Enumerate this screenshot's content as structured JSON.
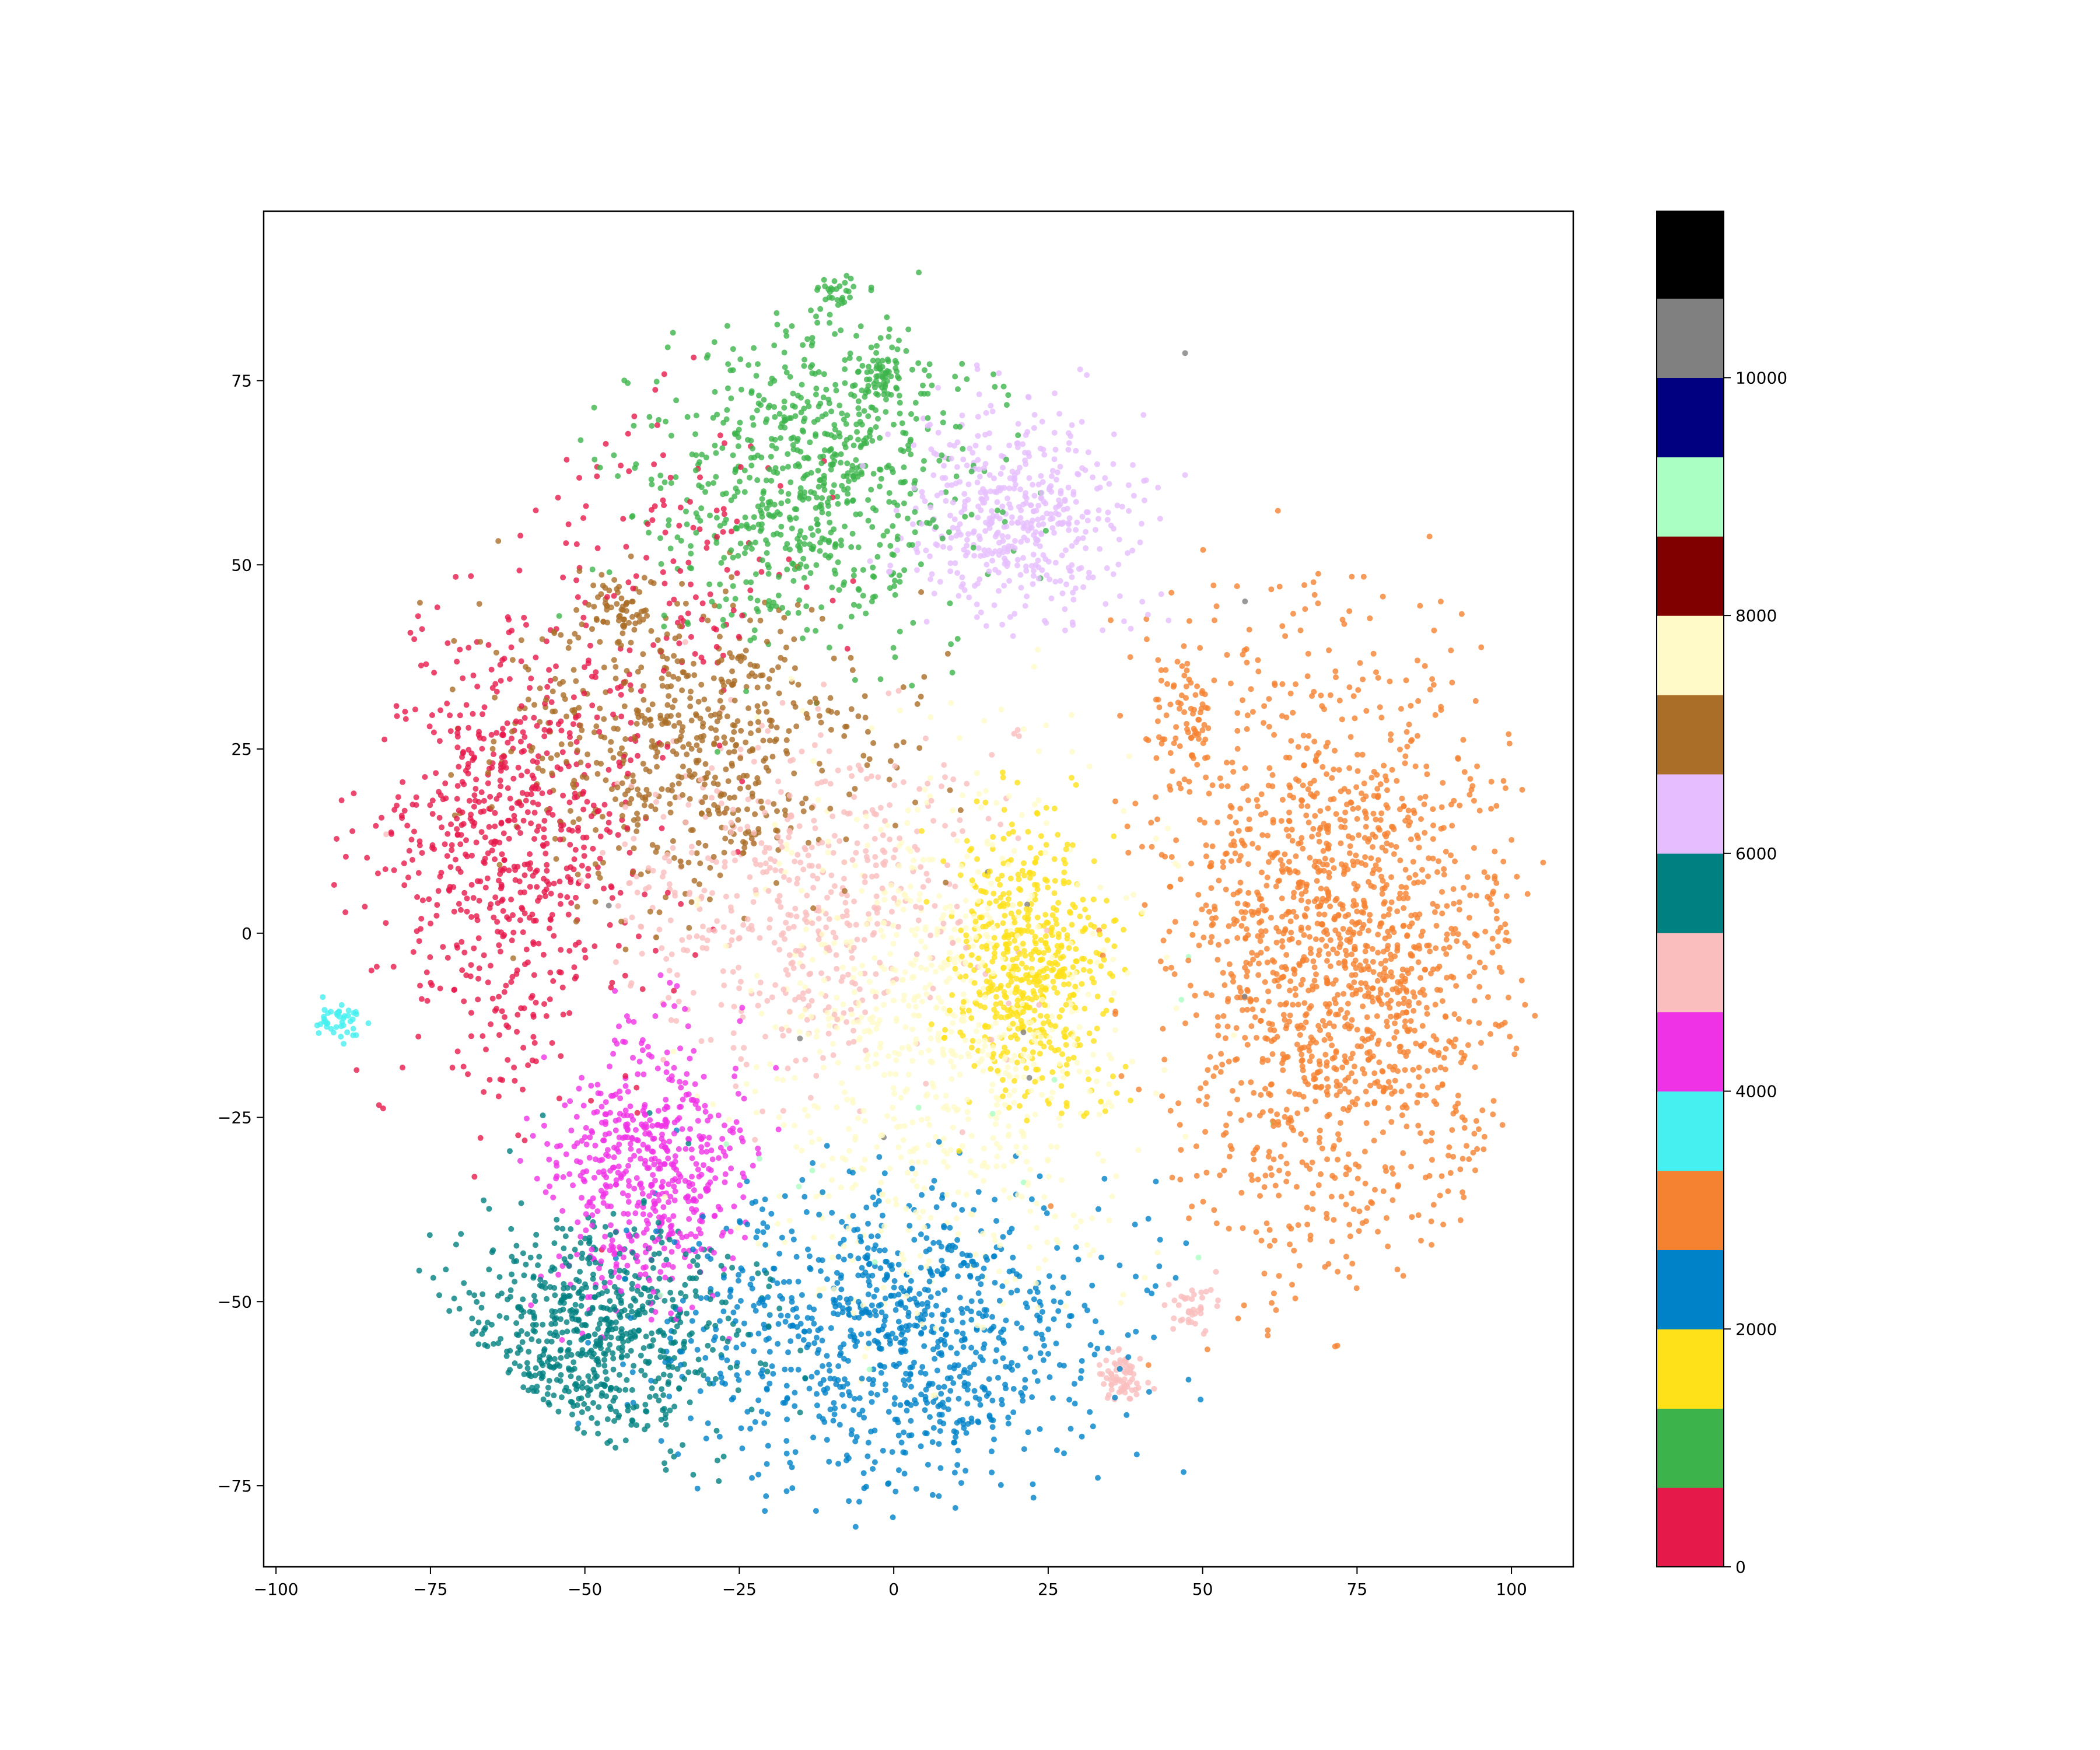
{
  "chart_data": {
    "type": "scatter",
    "title": "",
    "xlabel": "",
    "ylabel": "",
    "xlim": [
      -102,
      110
    ],
    "ylim": [
      -86,
      98
    ],
    "xticks": [
      "−100",
      "−75",
      "−50",
      "−25",
      "0",
      "25",
      "50",
      "75",
      "100"
    ],
    "xtick_values": [
      -100,
      -75,
      -50,
      -25,
      0,
      25,
      50,
      75,
      100
    ],
    "yticks": [
      "−75",
      "−50",
      "−25",
      "0",
      "25",
      "50",
      "75"
    ],
    "ytick_values": [
      -75,
      -50,
      -25,
      0,
      25,
      50,
      75
    ],
    "grid": false,
    "legend": "none",
    "colorbar": {
      "range": [
        0,
        11400
      ],
      "tick_labels": [
        "0",
        "2000",
        "4000",
        "6000",
        "8000",
        "10000"
      ],
      "tick_values": [
        0,
        2000,
        4000,
        6000,
        8000,
        10000
      ],
      "bins": [
        {
          "from": 0,
          "to": 667,
          "color": "#e6194b"
        },
        {
          "from": 667,
          "to": 1333,
          "color": "#3cb44b"
        },
        {
          "from": 1333,
          "to": 2000,
          "color": "#ffe119"
        },
        {
          "from": 2000,
          "to": 2667,
          "color": "#0082c8"
        },
        {
          "from": 2667,
          "to": 3333,
          "color": "#f58231"
        },
        {
          "from": 3333,
          "to": 4000,
          "color": "#46f0f0"
        },
        {
          "from": 4000,
          "to": 4667,
          "color": "#f032e6"
        },
        {
          "from": 4667,
          "to": 5333,
          "color": "#fabebe"
        },
        {
          "from": 5333,
          "to": 6000,
          "color": "#008080"
        },
        {
          "from": 6000,
          "to": 6667,
          "color": "#e6beff"
        },
        {
          "from": 6667,
          "to": 7333,
          "color": "#aa6e28"
        },
        {
          "from": 7333,
          "to": 8000,
          "color": "#fffac8"
        },
        {
          "from": 8000,
          "to": 8667,
          "color": "#800000"
        },
        {
          "from": 8667,
          "to": 9333,
          "color": "#aaffc3"
        },
        {
          "from": 9333,
          "to": 10000,
          "color": "#000080"
        },
        {
          "from": 10000,
          "to": 10667,
          "color": "#808080"
        },
        {
          "from": 10667,
          "to": 11400,
          "color": "#000000"
        }
      ]
    },
    "clusters": [
      {
        "color": "#e6194b",
        "cx": -62,
        "cy": 12,
        "sx": 11,
        "sy": 15,
        "n": 700
      },
      {
        "color": "#e6194b",
        "cx": -35,
        "cy": 52,
        "sx": 10,
        "sy": 10,
        "n": 120
      },
      {
        "color": "#3cb44b",
        "cx": -14,
        "cy": 62,
        "sx": 13,
        "sy": 11,
        "n": 750
      },
      {
        "color": "#3cb44b",
        "cx": -9,
        "cy": 88,
        "sx": 1.5,
        "sy": 2,
        "n": 40
      },
      {
        "color": "#3cb44b",
        "cx": -2,
        "cy": 76,
        "sx": 2.5,
        "sy": 2,
        "n": 60
      },
      {
        "color": "#ffe119",
        "cx": 22,
        "cy": -4,
        "sx": 6,
        "sy": 9,
        "n": 560
      },
      {
        "color": "#0082c8",
        "cx": 0,
        "cy": -55,
        "sx": 17,
        "sy": 10,
        "n": 950
      },
      {
        "color": "#f58231",
        "cx": 73,
        "cy": -3,
        "sx": 14,
        "sy": 20,
        "n": 1650
      },
      {
        "color": "#f58231",
        "cx": 46,
        "cy": 30,
        "sx": 4,
        "sy": 5,
        "n": 80
      },
      {
        "color": "#46f0f0",
        "cx": -90,
        "cy": -12,
        "sx": 2,
        "sy": 1.2,
        "n": 45
      },
      {
        "color": "#f032e6",
        "cx": -40,
        "cy": -32,
        "sx": 8,
        "sy": 9,
        "n": 560
      },
      {
        "color": "#fabebe",
        "cx": -15,
        "cy": 5,
        "sx": 14,
        "sy": 11,
        "n": 520
      },
      {
        "color": "#fabebe",
        "cx": 37,
        "cy": -60,
        "sx": 2,
        "sy": 2,
        "n": 70
      },
      {
        "color": "#fabebe",
        "cx": 48,
        "cy": -51,
        "sx": 3,
        "sy": 2,
        "n": 40
      },
      {
        "color": "#008080",
        "cx": -50,
        "cy": -55,
        "sx": 12,
        "sy": 8,
        "n": 780
      },
      {
        "color": "#e6beff",
        "cx": 20,
        "cy": 57,
        "sx": 9,
        "sy": 7,
        "n": 480
      },
      {
        "color": "#aa6e28",
        "cx": -33,
        "cy": 25,
        "sx": 15,
        "sy": 10,
        "n": 620
      },
      {
        "color": "#aa6e28",
        "cx": -44,
        "cy": 44,
        "sx": 2.5,
        "sy": 2.5,
        "n": 60
      },
      {
        "color": "#fffac8",
        "cx": 8,
        "cy": -15,
        "sx": 15,
        "sy": 18,
        "n": 800
      },
      {
        "color": "#aaffc3",
        "cx": 15,
        "cy": -30,
        "sx": 25,
        "sy": 20,
        "n": 15
      },
      {
        "color": "#808080",
        "cx": 0,
        "cy": 0,
        "sx": 30,
        "sy": 30,
        "n": 10
      }
    ]
  }
}
